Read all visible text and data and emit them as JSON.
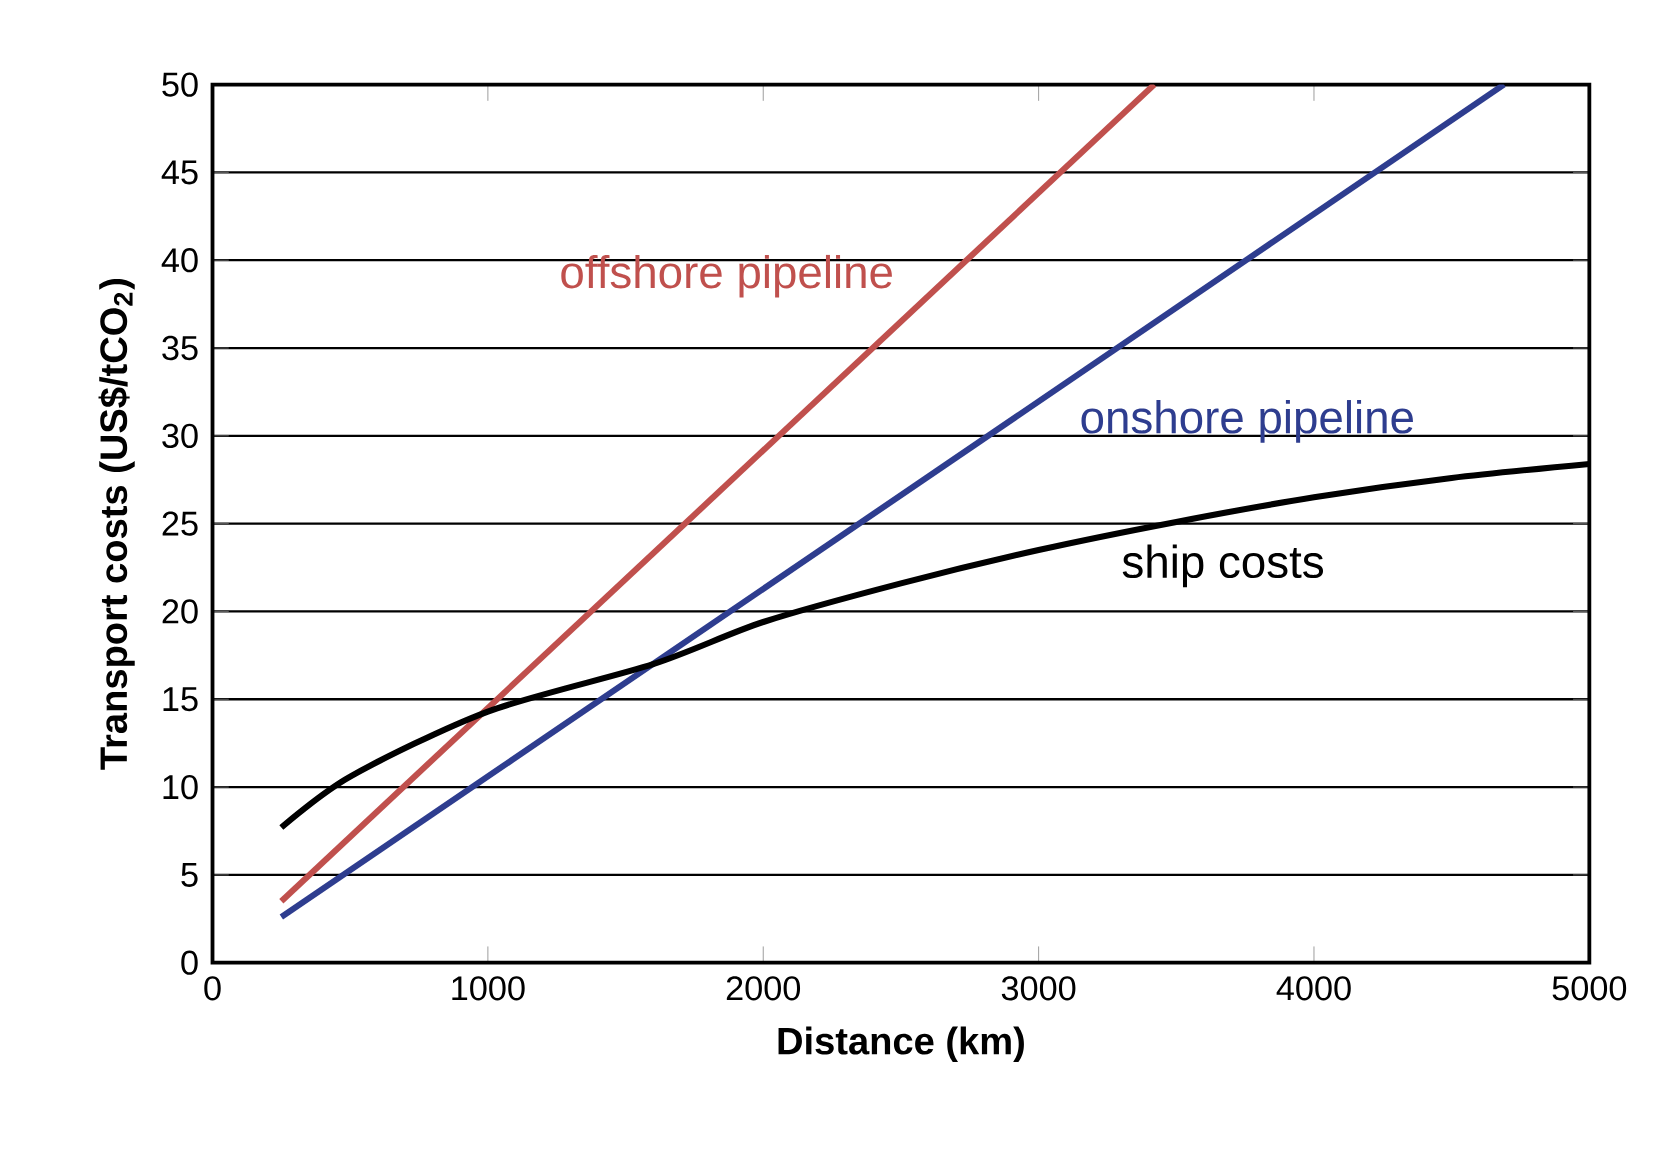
{
  "chart_data": {
    "type": "line",
    "xlabel": "Distance (km)",
    "ylabel": "Transport costs (US$/tCO$_{2}$)",
    "xlim": [
      0,
      5000
    ],
    "ylim": [
      0,
      50
    ],
    "xticks": [
      0,
      1000,
      2000,
      3000,
      4000,
      5000
    ],
    "yticks": [
      0,
      5,
      10,
      15,
      20,
      25,
      30,
      35,
      40,
      45,
      50
    ],
    "grid": "y",
    "marker": "none",
    "line_style": "solid",
    "legend": false,
    "series": [
      {
        "name": "offshore pipeline",
        "color": "#c0504d",
        "x": [
          250,
          3420
        ],
        "values": [
          3.5,
          50
        ]
      },
      {
        "name": "onshore pipeline",
        "color": "#2e3d8f",
        "x": [
          250,
          4690
        ],
        "values": [
          2.6,
          50
        ]
      },
      {
        "name": "ship costs",
        "color": "#000000",
        "x": [
          250,
          500,
          1000,
          1600,
          2000,
          2500,
          3000,
          3500,
          4000,
          4500,
          5000
        ],
        "values": [
          7.7,
          10.6,
          14.3,
          17,
          19.4,
          21.6,
          23.5,
          25.1,
          26.5,
          27.6,
          28.4
        ]
      }
    ]
  }
}
